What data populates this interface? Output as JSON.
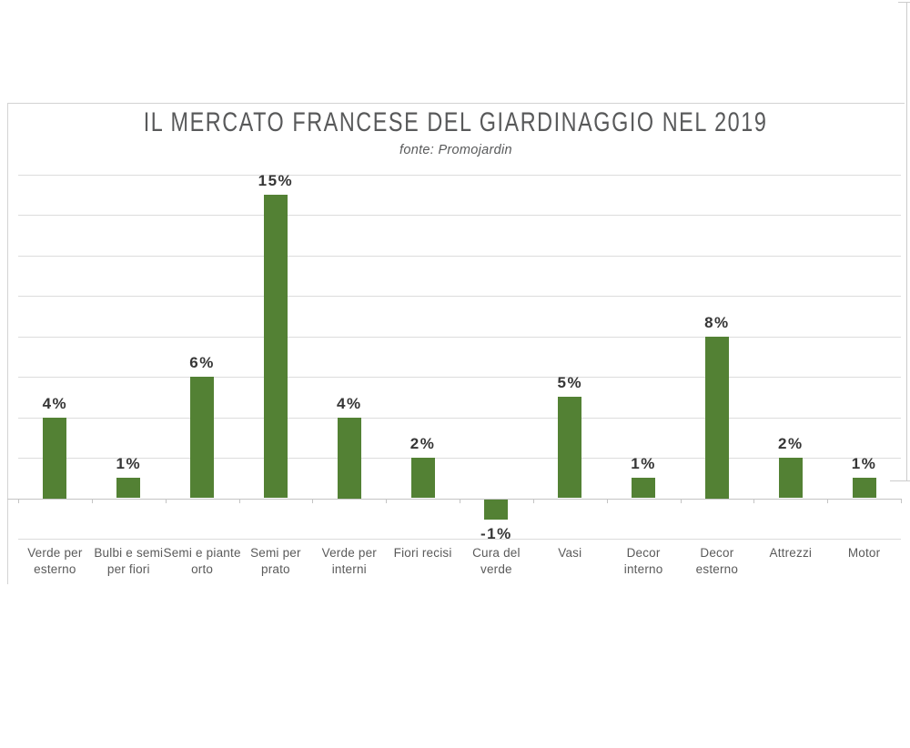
{
  "chart_data": {
    "type": "bar",
    "title": "IL MERCATO FRANCESE DEL GIARDINAGGIO NEL 2019",
    "subtitle": "fonte: Promojardin",
    "categories": [
      "Verde per\nesterno",
      "Bulbi e semi\nper fiori",
      "Semi e piante\norto",
      "Semi per\nprato",
      "Verde per\ninterni",
      "Fiori recisi",
      "Cura del\nverde",
      "Vasi",
      "Decor\ninterno",
      "Decor\nesterno",
      "Attrezzi",
      "Motor"
    ],
    "values": [
      4,
      1,
      6,
      15,
      4,
      2,
      -1,
      5,
      1,
      8,
      2,
      1
    ],
    "data_labels": [
      "4%",
      "1%",
      "6%",
      "15%",
      "4%",
      "2%",
      "-1%",
      "5%",
      "1%",
      "8%",
      "2%",
      "1%"
    ],
    "xlabel": "",
    "ylabel": "",
    "ylim": [
      -2,
      16
    ],
    "gridline_step": 2,
    "grid": "on",
    "legend": "none",
    "y_tick_labels": "none",
    "bar_color": "#538134",
    "value_label_color": "#363636",
    "category_label_color": "#5a5a5a",
    "title_color": "#58595a",
    "subtitle_color": "#58595a",
    "gridline_color": "#dcdcdc",
    "axis_color": "#c4c4c4"
  }
}
